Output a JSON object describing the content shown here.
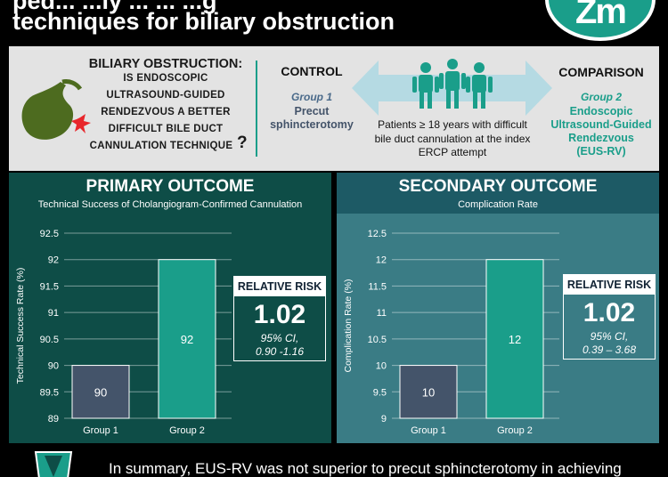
{
  "header": {
    "title_line1": "ped... ...ly ... ... ...g",
    "title_line2": "techniques for biliary obstruction",
    "logo_text": "Zm"
  },
  "question": {
    "line1": "BILIARY OBSTRUCTION:",
    "line2": "IS ENDOSCOPIC",
    "line3": "ULTRASOUND-GUIDED",
    "line4": "RENDEZVOUS A BETTER",
    "line5": "DIFFICULT BILE DUCT",
    "line6": "CANNULATION TECHNIQUE",
    "qmark": "?"
  },
  "control": {
    "heading": "CONTROL",
    "group": "Group 1",
    "label_line1": "Precut",
    "label_line2": "sphincterotomy"
  },
  "comparison": {
    "heading": "COMPARISON",
    "group": "Group 2",
    "label_line1": "Endoscopic",
    "label_line2": "Ultrasound-Guided",
    "label_line3": "Rendezvous",
    "label_line4": "(EUS-RV)"
  },
  "population": {
    "line1": "Patients ≥ 18 years with difficult",
    "line2": "bile duct cannulation at the index",
    "line3": "ERCP attempt"
  },
  "colors": {
    "teal": "#1a9e8a",
    "dark_slate": "#44546a",
    "primary_bg": "#0e4d47",
    "secondary_bg": "#3a7c85"
  },
  "primary": {
    "title": "PRIMARY OUTCOME",
    "subtitle": "Technical Success of Cholangiogram-Confirmed Cannulation",
    "relative_risk": {
      "label": "RELATIVE RISK",
      "value": "1.02",
      "ci_line1": "95% CI,",
      "ci_line2": "0.90 -1.16"
    }
  },
  "secondary": {
    "title": "SECONDARY OUTCOME",
    "subtitle": "Complication Rate",
    "relative_risk": {
      "label": "RELATIVE RISK",
      "value": "1.02",
      "ci_line1": "95% CI,",
      "ci_line2": "0.39 – 3.68"
    }
  },
  "summary": {
    "text": "In summary, EUS-RV was not superior to precut sphincterotomy in achieving"
  },
  "chart_data": [
    {
      "type": "bar",
      "categories": [
        "Group 1",
        "Group 2"
      ],
      "values": [
        90,
        92
      ],
      "data_labels": [
        "90",
        "92"
      ],
      "ylabel": "Technical Success Rate (%)",
      "ylim": [
        89,
        92.5
      ],
      "yticks": [
        89,
        89.5,
        90,
        90.5,
        91,
        91.5,
        92,
        92.5
      ],
      "ytick_labels": [
        "89",
        "89.5",
        "90",
        "90.5",
        "91",
        "91.5",
        "92",
        "92.5"
      ],
      "grid": true
    },
    {
      "type": "bar",
      "categories": [
        "Group 1",
        "Group 2"
      ],
      "values": [
        10,
        12
      ],
      "data_labels": [
        "10",
        "12"
      ],
      "ylabel": "Complication Rate (%)",
      "ylim": [
        9,
        12.5
      ],
      "yticks": [
        9,
        9.5,
        10,
        10.5,
        11,
        11.5,
        12,
        12.5
      ],
      "ytick_labels": [
        "9",
        "9.5",
        "10",
        "10.5",
        "11",
        "11.5",
        "12",
        "12.5"
      ],
      "grid": true
    }
  ]
}
